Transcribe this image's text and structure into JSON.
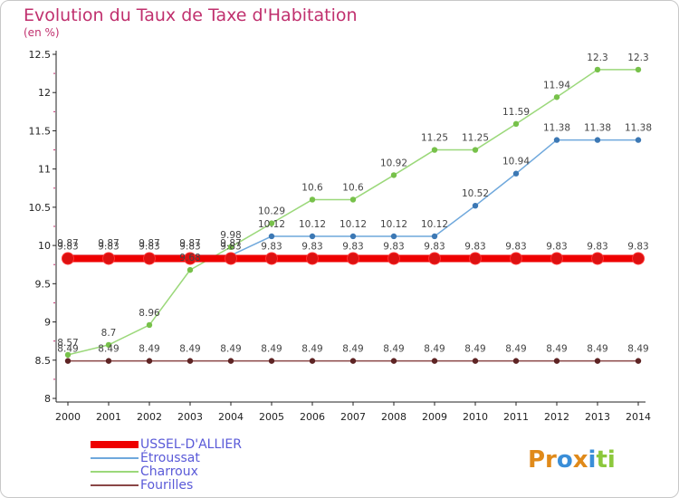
{
  "chart_data": {
    "type": "line",
    "title": "Evolution du Taux de Taxe d'Habitation",
    "unit_label": "(en %)",
    "x": [
      2000,
      2001,
      2002,
      2003,
      2004,
      2005,
      2006,
      2007,
      2008,
      2009,
      2010,
      2011,
      2012,
      2013,
      2014
    ],
    "ylim": [
      8,
      12.5
    ],
    "yticks": [
      8,
      8.5,
      9,
      9.5,
      10,
      10.5,
      11,
      11.5,
      12,
      12.5
    ],
    "grid": false,
    "legend_position": "bottom-left",
    "series": [
      {
        "name": "USSEL-D'ALLIER",
        "color": "#ee0000",
        "marker": "#dd1111",
        "values": [
          9.83,
          9.83,
          9.83,
          9.83,
          9.83,
          9.83,
          9.83,
          9.83,
          9.83,
          9.83,
          9.83,
          9.83,
          9.83,
          9.83,
          9.83
        ]
      },
      {
        "name": "Étroussat",
        "color": "#6fa8dc",
        "marker": "#3c78b4",
        "values": [
          9.87,
          9.87,
          9.87,
          9.87,
          9.87,
          10.12,
          10.12,
          10.12,
          10.12,
          10.12,
          10.52,
          10.94,
          11.38,
          11.38,
          11.38
        ]
      },
      {
        "name": "Charroux",
        "color": "#9bd87a",
        "marker": "#77c14a",
        "values": [
          8.57,
          8.7,
          8.96,
          9.68,
          9.98,
          10.29,
          10.6,
          10.6,
          10.92,
          11.25,
          11.25,
          11.59,
          11.94,
          12.3,
          12.3
        ]
      },
      {
        "name": "Fourilles",
        "color": "#8a4646",
        "marker": "#5e2424",
        "values": [
          8.49,
          8.49,
          8.49,
          8.49,
          8.49,
          8.49,
          8.49,
          8.49,
          8.49,
          8.49,
          8.49,
          8.49,
          8.49,
          8.49,
          8.49
        ]
      }
    ]
  },
  "branding": {
    "logo_text": "Proxiti"
  }
}
